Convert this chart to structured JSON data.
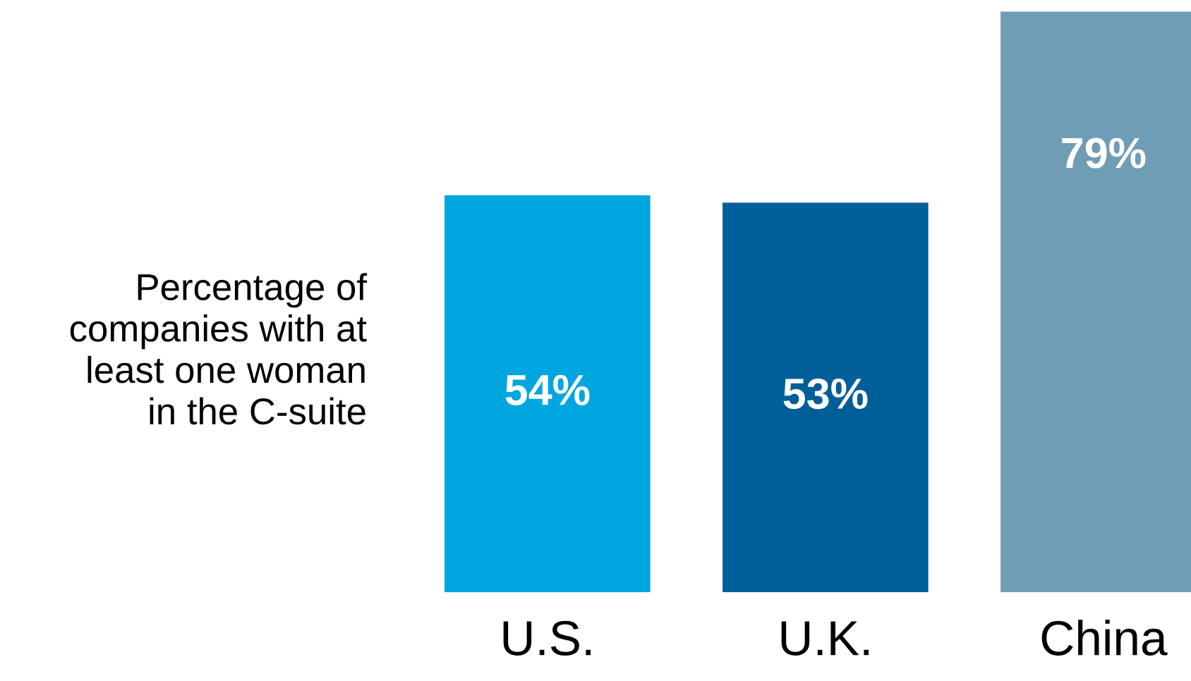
{
  "chart_data": {
    "type": "bar",
    "ylabel": "Percentage of\ncompanies with at\nleast one woman\nin the C-suite",
    "categories": [
      "U.S.",
      "U.K.",
      "China"
    ],
    "values": [
      54,
      53,
      79
    ],
    "colors": [
      "#00a6e0",
      "#005e99",
      "#6f9db5"
    ],
    "value_labels": [
      "54%",
      "53%",
      "79%"
    ],
    "grid": false,
    "legend": false
  }
}
